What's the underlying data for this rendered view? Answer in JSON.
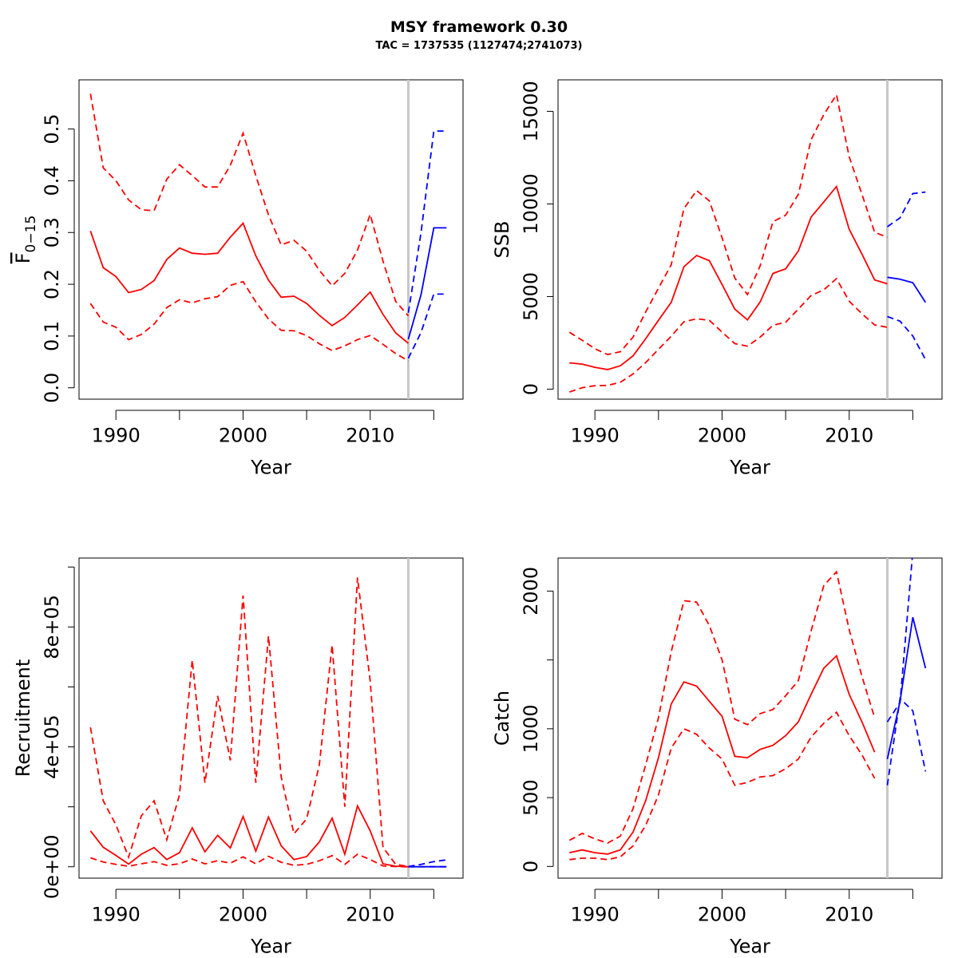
{
  "figure": {
    "title": "MSY framework 0.30",
    "subtitle": "TAC = 1737535 (1127474;2741073)"
  },
  "colors": {
    "historical": "#ff0000",
    "forecast": "#0000ff",
    "divider": "#c8c8c8"
  },
  "chart_data": [
    {
      "type": "line",
      "panel": "F",
      "ylabel": "F̅ 0−15",
      "ylabel_main": "F",
      "ylabel_sub": "0−15",
      "xlabel": "Year",
      "xlim": [
        1987.1,
        2017.3
      ],
      "ylim": [
        -0.022,
        0.595
      ],
      "x_ticks": [
        1990,
        2000,
        2010
      ],
      "x_minor_ticks": [
        1995,
        2005,
        2015
      ],
      "y_ticks": [
        0.0,
        0.1,
        0.2,
        0.3,
        0.4,
        0.5
      ],
      "y_tick_labels": [
        "0.0",
        "0.1",
        "0.2",
        "0.3",
        "0.4",
        "0.5"
      ],
      "divider_x": 2013,
      "grid": false,
      "series": [
        {
          "role": "estimate",
          "segment": "historical",
          "style": "solid",
          "x": [
            1988,
            1989,
            1990,
            1991,
            1992,
            1993,
            1994,
            1995,
            1996,
            1997,
            1998,
            1999,
            2000,
            2001,
            2002,
            2003,
            2004,
            2005,
            2006,
            2007,
            2008,
            2009,
            2010,
            2011,
            2012,
            2013
          ],
          "y": [
            0.303,
            0.232,
            0.215,
            0.184,
            0.19,
            0.207,
            0.248,
            0.27,
            0.26,
            0.258,
            0.26,
            0.291,
            0.318,
            0.255,
            0.208,
            0.175,
            0.177,
            0.163,
            0.14,
            0.12,
            0.136,
            0.16,
            0.185,
            0.142,
            0.106,
            0.086
          ]
        },
        {
          "role": "upper",
          "segment": "historical",
          "style": "dashed",
          "x": [
            1988,
            1989,
            1990,
            1991,
            1992,
            1993,
            1994,
            1995,
            1996,
            1997,
            1998,
            1999,
            2000,
            2001,
            2002,
            2003,
            2004,
            2005,
            2006,
            2007,
            2008,
            2009,
            2010,
            2011,
            2012,
            2013
          ],
          "y": [
            0.568,
            0.425,
            0.4,
            0.363,
            0.344,
            0.342,
            0.403,
            0.431,
            0.41,
            0.388,
            0.388,
            0.43,
            0.492,
            0.41,
            0.334,
            0.276,
            0.285,
            0.264,
            0.227,
            0.197,
            0.221,
            0.266,
            0.335,
            0.245,
            0.167,
            0.139
          ]
        },
        {
          "role": "lower",
          "segment": "historical",
          "style": "dashed",
          "x": [
            1988,
            1989,
            1990,
            1991,
            1992,
            1993,
            1994,
            1995,
            1996,
            1997,
            1998,
            1999,
            2000,
            2001,
            2002,
            2003,
            2004,
            2005,
            2006,
            2007,
            2008,
            2009,
            2010,
            2011,
            2012,
            2013
          ],
          "y": [
            0.163,
            0.127,
            0.117,
            0.093,
            0.103,
            0.123,
            0.155,
            0.17,
            0.164,
            0.172,
            0.176,
            0.198,
            0.205,
            0.166,
            0.133,
            0.111,
            0.11,
            0.101,
            0.085,
            0.072,
            0.081,
            0.093,
            0.101,
            0.084,
            0.066,
            0.052
          ]
        },
        {
          "role": "estimate",
          "segment": "forecast",
          "style": "solid",
          "x": [
            2013,
            2014,
            2015,
            2016
          ],
          "y": [
            0.094,
            0.18,
            0.309,
            0.309
          ]
        },
        {
          "role": "upper",
          "segment": "forecast",
          "style": "dashed",
          "x": [
            2013,
            2014,
            2015,
            2016
          ],
          "y": [
            0.145,
            0.3,
            0.496,
            0.496
          ]
        },
        {
          "role": "lower",
          "segment": "forecast",
          "style": "dashed",
          "x": [
            2013,
            2014,
            2015,
            2016
          ],
          "y": [
            0.057,
            0.107,
            0.181,
            0.181
          ]
        }
      ]
    },
    {
      "type": "line",
      "panel": "SSB",
      "ylabel": "SSB",
      "xlabel": "Year",
      "xlim": [
        1987.1,
        2017.3
      ],
      "ylim": [
        -540,
        16700
      ],
      "x_ticks": [
        1990,
        2000,
        2010
      ],
      "x_minor_ticks": [
        1995,
        2005,
        2015
      ],
      "y_ticks": [
        0,
        5000,
        10000,
        15000
      ],
      "y_tick_labels": [
        "0",
        "5000",
        "10000",
        "15000"
      ],
      "divider_x": 2013,
      "grid": false,
      "series": [
        {
          "role": "estimate",
          "segment": "historical",
          "style": "solid",
          "x": [
            1988,
            1989,
            1990,
            1991,
            1992,
            1993,
            1994,
            1995,
            1996,
            1997,
            1998,
            1999,
            2000,
            2001,
            2002,
            2003,
            2004,
            2005,
            2006,
            2007,
            2008,
            2009,
            2010,
            2011,
            2012,
            2013
          ],
          "y": [
            1420,
            1350,
            1180,
            1060,
            1260,
            1800,
            2730,
            3720,
            4690,
            6610,
            7220,
            6940,
            5650,
            4320,
            3740,
            4710,
            6250,
            6500,
            7460,
            9290,
            10110,
            10940,
            8630,
            7290,
            5900,
            5690
          ]
        },
        {
          "role": "upper",
          "segment": "historical",
          "style": "dashed",
          "x": [
            1988,
            1989,
            1990,
            1991,
            1992,
            1993,
            1994,
            1995,
            1996,
            1997,
            1998,
            1999,
            2000,
            2001,
            2002,
            2003,
            2004,
            2005,
            2006,
            2007,
            2008,
            2009,
            2010,
            2011,
            2012,
            2013
          ],
          "y": [
            3070,
            2640,
            2180,
            1870,
            2020,
            2810,
            4180,
            5450,
            6720,
            9750,
            10720,
            10170,
            8170,
            6000,
            5110,
            6660,
            9040,
            9390,
            10520,
            13470,
            14820,
            15900,
            12550,
            10520,
            8470,
            8200
          ]
        },
        {
          "role": "lower",
          "segment": "historical",
          "style": "dashed",
          "x": [
            1988,
            1989,
            1990,
            1991,
            1992,
            1993,
            1994,
            1995,
            1996,
            1997,
            1998,
            1999,
            2000,
            2001,
            2002,
            2003,
            2004,
            2005,
            2006,
            2007,
            2008,
            2009,
            2010,
            2011,
            2012,
            2013
          ],
          "y": [
            -150,
            80,
            190,
            200,
            370,
            820,
            1440,
            2150,
            2860,
            3640,
            3800,
            3720,
            3080,
            2460,
            2320,
            2810,
            3450,
            3610,
            4320,
            5060,
            5360,
            5970,
            4750,
            4070,
            3470,
            3340
          ]
        },
        {
          "role": "estimate",
          "segment": "forecast",
          "style": "solid",
          "x": [
            2013,
            2014,
            2015,
            2016
          ],
          "y": [
            6040,
            5940,
            5750,
            4690
          ]
        },
        {
          "role": "upper",
          "segment": "forecast",
          "style": "dashed",
          "x": [
            2013,
            2014,
            2015,
            2016
          ],
          "y": [
            8770,
            9250,
            10560,
            10640
          ]
        },
        {
          "role": "lower",
          "segment": "forecast",
          "style": "dashed",
          "x": [
            2013,
            2014,
            2015,
            2016
          ],
          "y": [
            3920,
            3670,
            2870,
            1600
          ]
        }
      ]
    },
    {
      "type": "line",
      "panel": "Recruitment",
      "ylabel": "Recruitment",
      "xlabel": "Year",
      "xlim": [
        1987.1,
        2017.3
      ],
      "ylim": [
        -38000,
        1030000
      ],
      "x_ticks": [
        1990,
        2000,
        2010
      ],
      "x_minor_ticks": [
        1995,
        2005,
        2015
      ],
      "y_ticks": [
        0,
        200000,
        400000,
        600000,
        800000,
        1000000
      ],
      "y_tick_labels": [
        "0e+00",
        "",
        "4e+05",
        "",
        "8e+05",
        ""
      ],
      "divider_x": 2013,
      "grid": false,
      "series": [
        {
          "role": "estimate",
          "segment": "historical",
          "style": "solid",
          "x": [
            1988,
            1989,
            1990,
            1991,
            1992,
            1993,
            1994,
            1995,
            1996,
            1997,
            1998,
            1999,
            2000,
            2001,
            2002,
            2003,
            2004,
            2005,
            2006,
            2007,
            2008,
            2009,
            2010,
            2011,
            2012,
            2013
          ],
          "y": [
            120000,
            65000,
            38000,
            9000,
            42000,
            64000,
            24000,
            47000,
            130000,
            50000,
            105000,
            63000,
            168000,
            52000,
            166000,
            70000,
            24000,
            34000,
            83000,
            162000,
            42000,
            203000,
            120000,
            10000,
            2000,
            0
          ]
        },
        {
          "role": "upper",
          "segment": "historical",
          "style": "dashed",
          "x": [
            1988,
            1989,
            1990,
            1991,
            1992,
            1993,
            1994,
            1995,
            1996,
            1997,
            1998,
            1999,
            2000,
            2001,
            2002,
            2003,
            2004,
            2005,
            2006,
            2007,
            2008,
            2009,
            2010,
            2011,
            2012,
            2013
          ],
          "y": [
            465000,
            220000,
            140000,
            32000,
            170000,
            220000,
            90000,
            240000,
            690000,
            280000,
            570000,
            355000,
            905000,
            280000,
            770000,
            300000,
            110000,
            160000,
            340000,
            740000,
            200000,
            965000,
            620000,
            65000,
            8000,
            1000
          ]
        },
        {
          "role": "lower",
          "segment": "historical",
          "style": "dashed",
          "x": [
            1988,
            1989,
            1990,
            1991,
            1992,
            1993,
            1994,
            1995,
            1996,
            1997,
            1998,
            1999,
            2000,
            2001,
            2002,
            2003,
            2004,
            2005,
            2006,
            2007,
            2008,
            2009,
            2010,
            2011,
            2012,
            2013
          ],
          "y": [
            30000,
            16000,
            8000,
            2000,
            10000,
            17000,
            5000,
            10000,
            26000,
            10000,
            20000,
            12000,
            33000,
            10000,
            35000,
            15000,
            5000,
            8000,
            20000,
            37000,
            8000,
            42000,
            24000,
            3000,
            500,
            0
          ]
        },
        {
          "role": "estimate",
          "segment": "forecast",
          "style": "solid",
          "x": [
            2013,
            2014,
            2015,
            2016
          ],
          "y": [
            0,
            0,
            0,
            0
          ]
        },
        {
          "role": "upper",
          "segment": "forecast",
          "style": "dashed",
          "x": [
            2013,
            2014,
            2015,
            2016
          ],
          "y": [
            1000,
            8000,
            17000,
            23000
          ]
        },
        {
          "role": "lower",
          "segment": "forecast",
          "style": "dashed",
          "x": [
            2013,
            2014,
            2015,
            2016
          ],
          "y": [
            0,
            0,
            0,
            0
          ]
        }
      ]
    },
    {
      "type": "line",
      "panel": "Catch",
      "ylabel": "Catch",
      "xlabel": "Year",
      "xlim": [
        1987.1,
        2017.3
      ],
      "ylim": [
        -85,
        2240
      ],
      "x_ticks": [
        1990,
        2000,
        2010
      ],
      "x_minor_ticks": [
        1995,
        2005,
        2015
      ],
      "y_ticks": [
        0,
        500,
        1000,
        1500,
        2000
      ],
      "y_tick_labels": [
        "0",
        "500",
        "1000",
        "",
        "2000"
      ],
      "divider_x": 2013,
      "grid": false,
      "series": [
        {
          "role": "estimate",
          "segment": "historical",
          "style": "solid",
          "x": [
            1988,
            1989,
            1990,
            1991,
            1992,
            1993,
            1994,
            1995,
            1996,
            1997,
            1998,
            1999,
            2000,
            2001,
            2002,
            2003,
            2004,
            2005,
            2006,
            2007,
            2008,
            2009,
            2010,
            2011,
            2012
          ],
          "y": [
            100,
            120,
            100,
            90,
            120,
            250,
            480,
            790,
            1180,
            1340,
            1310,
            1200,
            1090,
            800,
            790,
            850,
            880,
            950,
            1050,
            1250,
            1440,
            1530,
            1250,
            1050,
            830
          ]
        },
        {
          "role": "upper",
          "segment": "historical",
          "style": "dashed",
          "x": [
            1988,
            1989,
            1990,
            1991,
            1992,
            1993,
            1994,
            1995,
            1996,
            1997,
            1998,
            1999,
            2000,
            2001,
            2002,
            2003,
            2004,
            2005,
            2006,
            2007,
            2008,
            2009,
            2010,
            2011,
            2012
          ],
          "y": [
            190,
            240,
            200,
            170,
            220,
            420,
            740,
            1080,
            1560,
            1930,
            1920,
            1750,
            1500,
            1070,
            1030,
            1110,
            1140,
            1240,
            1350,
            1710,
            2040,
            2140,
            1720,
            1380,
            1080
          ]
        },
        {
          "role": "lower",
          "segment": "historical",
          "style": "dashed",
          "x": [
            1988,
            1989,
            1990,
            1991,
            1992,
            1993,
            1994,
            1995,
            1996,
            1997,
            1998,
            1999,
            2000,
            2001,
            2002,
            2003,
            2004,
            2005,
            2006,
            2007,
            2008,
            2009,
            2010,
            2011,
            2012
          ],
          "y": [
            50,
            60,
            60,
            50,
            70,
            150,
            300,
            520,
            860,
            1000,
            960,
            860,
            780,
            590,
            610,
            650,
            660,
            710,
            780,
            940,
            1040,
            1120,
            950,
            810,
            640
          ]
        },
        {
          "role": "estimate",
          "segment": "forecast",
          "style": "solid",
          "x": [
            2013,
            2014,
            2015,
            2016
          ],
          "y": [
            780,
            1200,
            1810,
            1440
          ]
        },
        {
          "role": "upper",
          "segment": "forecast",
          "style": "dashed",
          "x": [
            2013,
            2014,
            2015,
            2016
          ],
          "y": [
            1050,
            1190,
            2290,
            2290
          ]
        },
        {
          "role": "lower",
          "segment": "forecast",
          "style": "dashed",
          "x": [
            2013,
            2014,
            2015,
            2016
          ],
          "y": [
            590,
            1220,
            1130,
            690
          ]
        }
      ]
    }
  ]
}
